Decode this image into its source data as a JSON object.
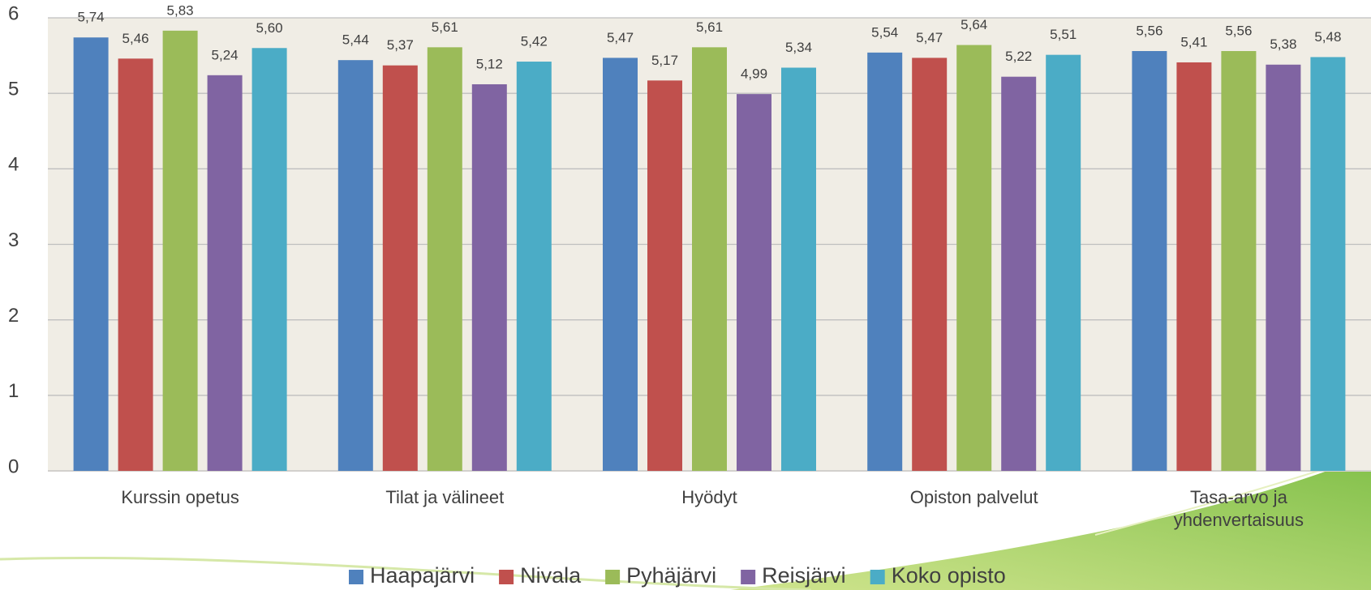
{
  "chart_data": {
    "type": "bar",
    "categories": [
      "Kurssin opetus",
      "Tilat ja välineet",
      "Hyödyt",
      "Opiston palvelut",
      "Tasa-arvo ja yhdenvertaisuus"
    ],
    "series": [
      {
        "name": "Haapajärvi",
        "color": "#4f81bd",
        "values": [
          5.74,
          5.44,
          5.47,
          5.54,
          5.56
        ],
        "value_labels": [
          "5,74",
          "5,44",
          "5,47",
          "5,54",
          "5,56"
        ]
      },
      {
        "name": "Nivala",
        "color": "#c0504d",
        "values": [
          5.46,
          5.37,
          5.17,
          5.47,
          5.41
        ],
        "value_labels": [
          "5,46",
          "5,37",
          "5,17",
          "5,47",
          "5,41"
        ]
      },
      {
        "name": "Pyhäjärvi",
        "color": "#9bbb59",
        "values": [
          5.83,
          5.61,
          5.61,
          5.64,
          5.56
        ],
        "value_labels": [
          "5,83",
          "5,61",
          "5,61",
          "5,64",
          "5,56"
        ]
      },
      {
        "name": "Reisjärvi",
        "color": "#8064a2",
        "values": [
          5.24,
          5.12,
          4.99,
          5.22,
          5.38
        ],
        "value_labels": [
          "5,24",
          "5,12",
          "4,99",
          "5,22",
          "5,38"
        ]
      },
      {
        "name": "Koko opisto",
        "color": "#4bacc6",
        "values": [
          5.6,
          5.42,
          5.34,
          5.51,
          5.48
        ],
        "value_labels": [
          "5,60",
          "5,42",
          "5,34",
          "5,51",
          "5,48"
        ]
      }
    ],
    "ylim": [
      0,
      6
    ],
    "yticks": [
      0,
      1,
      2,
      3,
      4,
      5,
      6
    ],
    "grid": true,
    "legend": "bottom"
  }
}
